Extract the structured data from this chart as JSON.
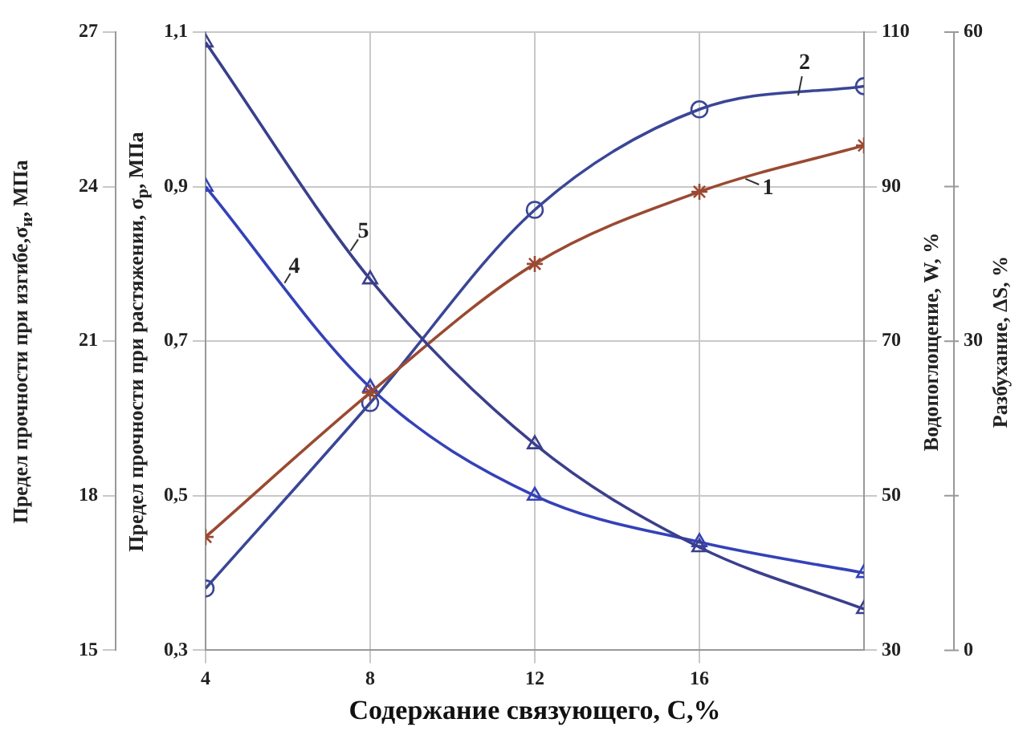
{
  "chart_data": [
    {
      "type": "line",
      "xlabel": "Содержание связующего, С,%",
      "ylabel": "Предел прочности при изгибе,σ$_{и}$, МПа",
      "y2label": "Предел прочности при  растяжении, σ$_{р}$, МПа",
      "y3label": "Водопоглощение, W, %",
      "x": [
        4,
        8,
        12,
        16,
        20
      ],
      "xlim": [
        4,
        20
      ],
      "xticks": [
        4,
        8,
        12,
        16
      ],
      "ylim": [
        15,
        27
      ],
      "yticks": [
        15,
        18,
        21,
        24,
        27
      ],
      "y2lim": [
        0.3,
        1.1
      ],
      "y2ticks": [
        {
          "value": 0.3,
          "label": "0,3"
        },
        {
          "value": 0.5,
          "label": "0,5"
        },
        {
          "value": 0.7,
          "label": "0,7"
        },
        {
          "value": 0.9,
          "label": "0,9"
        },
        {
          "value": 1.1,
          "label": "1,1"
        }
      ],
      "y3lim": [
        30,
        110
      ],
      "y3ticks": [
        30,
        50,
        70,
        90,
        110
      ],
      "grid": true,
      "legend": false,
      "series": [
        {
          "name": "1",
          "color": "#9a4a32",
          "marker": "cross",
          "values": [
            17.2,
            20.0,
            22.5,
            23.9,
            24.8
          ]
        },
        {
          "name": "2",
          "color": "#3a4696",
          "marker": "circle",
          "axis": "y2",
          "values": [
            0.38,
            0.62,
            0.87,
            1.0,
            1.03
          ]
        },
        {
          "name": "4",
          "color": "#3442b8",
          "marker": "triangle",
          "axis": "y3",
          "values": [
            90,
            64,
            50,
            44,
            40
          ]
        }
      ]
    },
    {
      "type": "line",
      "ylabel": "Разбухание, ΔS, %",
      "x": [
        4,
        8,
        12,
        16,
        20
      ],
      "xlim": [
        4,
        20
      ],
      "tick_labels": "y",
      "grid": false,
      "legend": false,
      "ylim": [
        0,
        60
      ],
      "yticks": [
        0,
        {
          "value": 15,
          "label": null
        },
        30,
        {
          "value": 45,
          "label": null
        },
        60
      ],
      "series": [
        {
          "name": "5",
          "color": "#3a3f8c",
          "marker": "triangle",
          "values": [
            59,
            36,
            20,
            10,
            4
          ]
        }
      ]
    }
  ]
}
